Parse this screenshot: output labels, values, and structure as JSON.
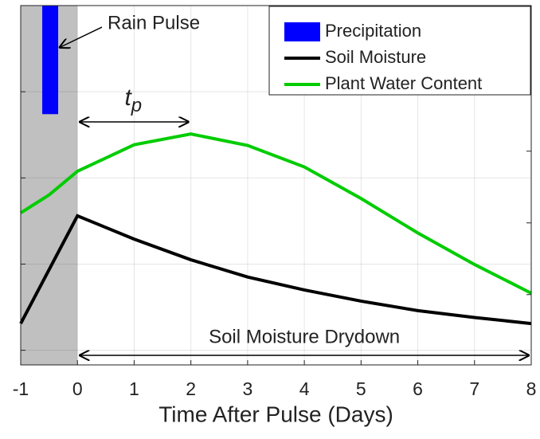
{
  "chart_data": {
    "type": "line",
    "xlabel": "Time After Pulse (Days)",
    "xlim": [
      -1,
      8
    ],
    "xticks": [
      -1,
      0,
      1,
      2,
      3,
      4,
      5,
      6,
      7,
      8
    ],
    "ylim": [
      -0.17,
      4.0
    ],
    "yticks": [
      0,
      1,
      2,
      3
    ],
    "y2lim": [
      -0.98,
      4.03
    ],
    "y2ticks": [
      0,
      1,
      2,
      3
    ],
    "grid": true,
    "legend": "upper right",
    "shade": {
      "x": [
        -1,
        0
      ],
      "color": "#c0c0c0"
    },
    "series": [
      {
        "name": "Precipitation",
        "kind": "bar",
        "color": "#0000ff",
        "x": [
          -0.48
        ],
        "values": [
          2.74
        ]
      },
      {
        "name": "Soil Moisture",
        "color": "#000000",
        "x": [
          -1,
          0,
          1,
          2,
          3,
          4,
          5,
          6,
          7,
          8
        ],
        "values": [
          0.31,
          1.56,
          1.29,
          1.05,
          0.85,
          0.7,
          0.57,
          0.46,
          0.38,
          0.31
        ]
      },
      {
        "name": "Plant Water Content",
        "color": "#00cc00",
        "axis": "y2",
        "x": [
          -1,
          -0.5,
          0,
          1,
          2,
          3,
          4,
          5,
          6,
          7,
          8
        ],
        "values": [
          1.14,
          1.39,
          1.72,
          2.09,
          2.24,
          2.08,
          1.78,
          1.34,
          0.86,
          0.42,
          0.02
        ]
      }
    ],
    "annotations": [
      {
        "text": "Rain Pulse"
      },
      {
        "text": "t",
        "sub": "p",
        "x": [
          0,
          2
        ]
      },
      {
        "text": "Soil Moisture Drydown",
        "x": [
          0,
          8
        ]
      }
    ]
  }
}
